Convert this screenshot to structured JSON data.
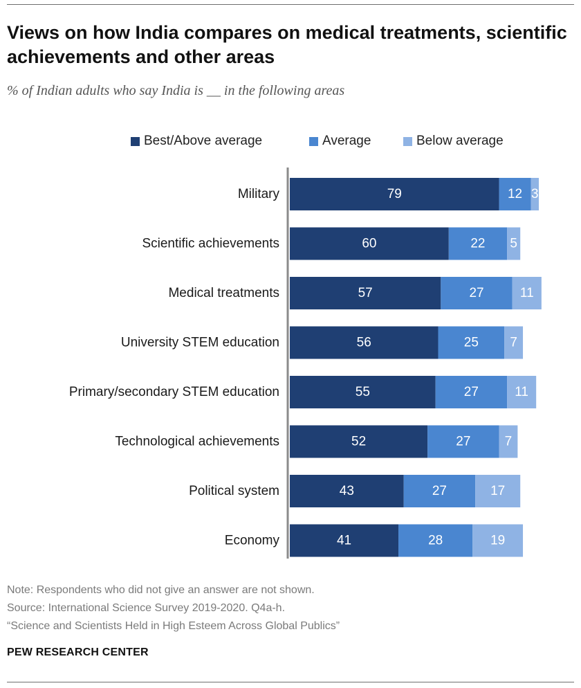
{
  "title": "Views on how India compares on medical treatments, scientific achievements and other areas",
  "subtitle": "% of Indian adults who say India is __ in the following areas",
  "colors": {
    "best": "#1f3f73",
    "average": "#4a86d0",
    "below": "#8fb3e4"
  },
  "chart_data": {
    "type": "bar",
    "orientation": "horizontal",
    "stacked": true,
    "categories": [
      "Military",
      "Scientific achievements",
      "Medical treatments",
      "University STEM education",
      "Primary/secondary STEM education",
      "Technological achievements",
      "Political system",
      "Economy"
    ],
    "series": [
      {
        "name": "Best/Above average",
        "values": [
          79,
          60,
          57,
          56,
          55,
          52,
          43,
          41
        ]
      },
      {
        "name": "Average",
        "values": [
          12,
          22,
          27,
          25,
          27,
          27,
          27,
          28
        ]
      },
      {
        "name": "Below average",
        "values": [
          3,
          5,
          11,
          7,
          11,
          7,
          17,
          19
        ]
      }
    ],
    "xlim": [
      0,
      100
    ],
    "legend_position": "top"
  },
  "footer": {
    "note": "Note: Respondents who did not give an answer are not shown.",
    "source": "Source: International Science Survey 2019-2020. Q4a-h.",
    "report": "“Science and Scientists Held in High Esteem Across Global Publics”",
    "brand": "PEW RESEARCH CENTER"
  }
}
